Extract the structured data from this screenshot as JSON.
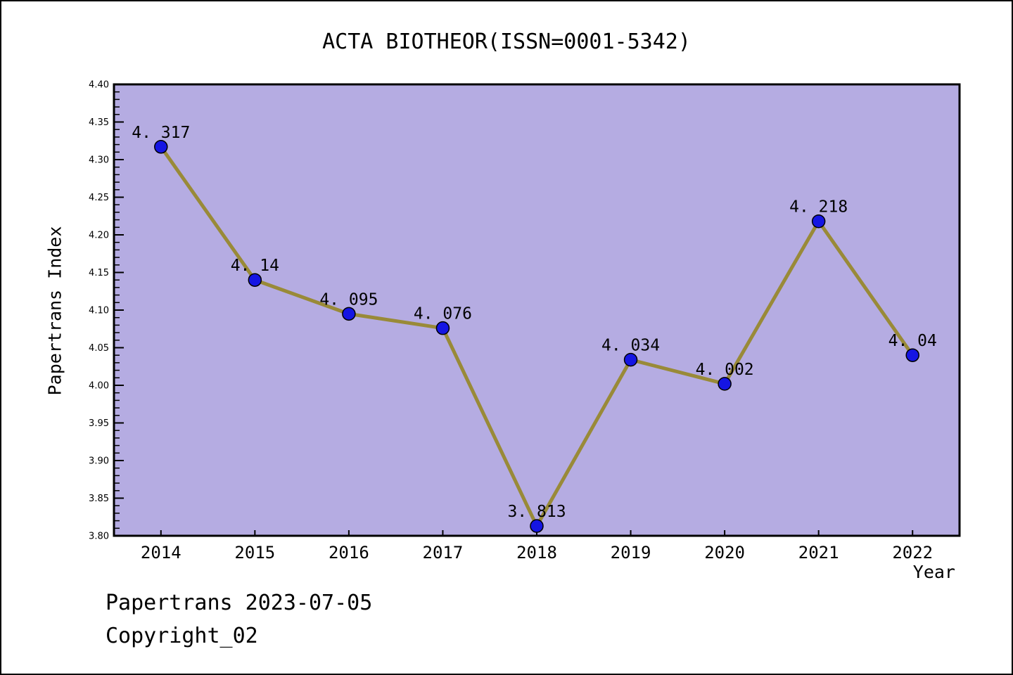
{
  "title": "ACTA BIOTHEOR(ISSN=0001-5342)",
  "footer": {
    "line1": "Papertrans 2023-07-05",
    "line2": "Copyright_02"
  },
  "chart_data": {
    "type": "line",
    "title": "ACTA BIOTHEOR(ISSN=0001-5342)",
    "x": [
      2014,
      2015,
      2016,
      2017,
      2018,
      2019,
      2020,
      2021,
      2022
    ],
    "values": [
      4.317,
      4.14,
      4.095,
      4.076,
      3.813,
      4.034,
      4.002,
      4.218,
      4.04
    ],
    "point_labels": [
      "4. 317",
      "4. 14",
      "4. 095",
      "4. 076",
      "3. 813",
      "4. 034",
      "4. 002",
      "4. 218",
      "4. 04"
    ],
    "xlabel": "Year",
    "ylabel": "Papertrans Index",
    "xlim": [
      2013.5,
      2022.5
    ],
    "ylim": [
      3.8,
      4.4
    ],
    "x_ticks": [
      2014,
      2015,
      2016,
      2017,
      2018,
      2019,
      2020,
      2021,
      2022
    ],
    "x_tick_labels": [
      "2014",
      "2015",
      "2016",
      "2017",
      "2018",
      "2019",
      "2020",
      "2021",
      "2022"
    ],
    "y_tick_labels": [
      "3.80",
      "3.85",
      "3.90",
      "3.95",
      "4.00",
      "4.05",
      "4.10",
      "4.15",
      "4.20",
      "4.25",
      "4.30",
      "4.35",
      "4.40"
    ],
    "y_major_step": 0.05,
    "y_minor_step": 0.01,
    "grid": false,
    "legend": "none",
    "colors": {
      "line": "#998a38",
      "marker_fill": "#1515e3",
      "marker_edge": "#000000",
      "plot_background": "#b5ace2",
      "axis": "#000000",
      "text": "#000000"
    }
  }
}
